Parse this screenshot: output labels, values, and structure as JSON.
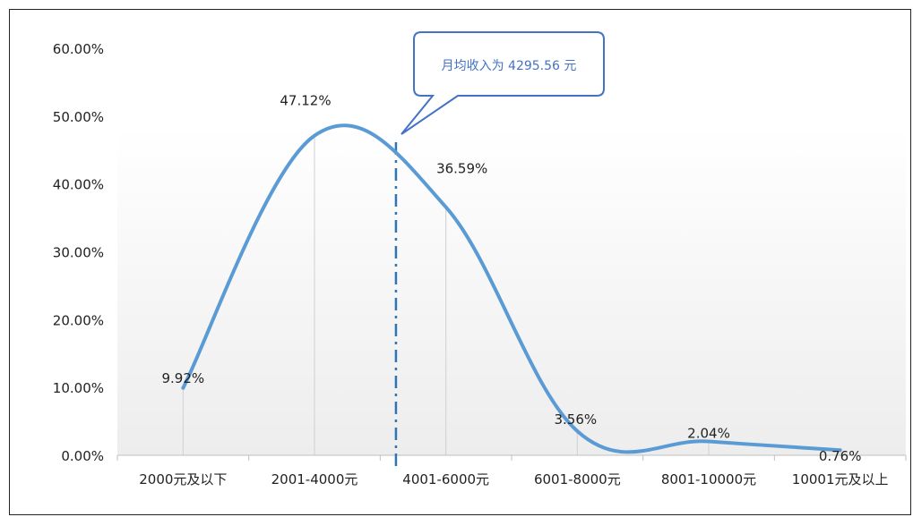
{
  "chart_data": {
    "type": "line",
    "title": "",
    "xlabel": "",
    "ylabel": "",
    "categories": [
      "2000元及以下",
      "2001-4000元",
      "4001-6000元",
      "6001-8000元",
      "8001-10000元",
      "10001元及以上"
    ],
    "values": [
      9.92,
      47.12,
      36.59,
      3.56,
      2.04,
      0.76
    ],
    "value_labels": [
      "9.92%",
      "47.12%",
      "36.59%",
      "3.56%",
      "2.04%",
      "0.76%"
    ],
    "ylim": [
      0,
      60
    ],
    "y_ticks": [
      0,
      10,
      20,
      30,
      40,
      50,
      60
    ],
    "y_tick_labels": [
      "0.00%",
      "10.00%",
      "20.00%",
      "30.00%",
      "40.00%",
      "50.00%",
      "60.00%"
    ],
    "smooth": true,
    "series_color": "#5b9bd5",
    "mean_marker": {
      "value": 4295.56,
      "style": "dash-dot",
      "color": "#2e75b6"
    },
    "annotation": {
      "text": "月均收入为 4295.56 元",
      "color": "#4472c4"
    },
    "grid": false,
    "background_gradient": [
      "#ffffff",
      "#ededed"
    ]
  }
}
